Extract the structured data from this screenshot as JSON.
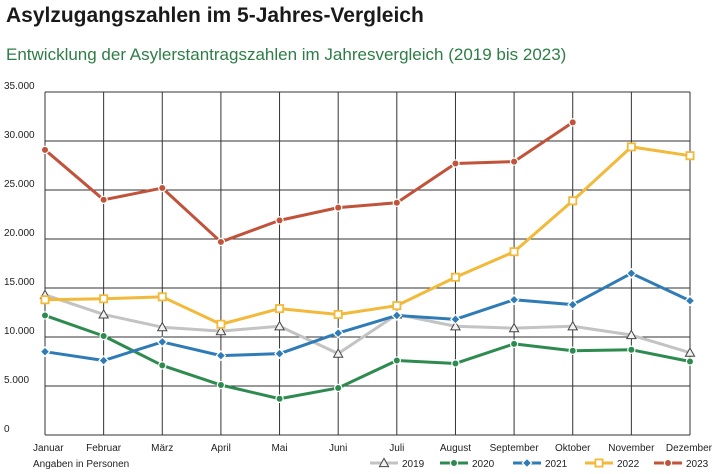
{
  "header": {
    "title": "Asylzugangszahlen im 5-Jahres-Vergleich",
    "subtitle": "Entwicklung der Asylerstantragszahlen im Jahresvergleich (2019 bis 2023)"
  },
  "chart_data": {
    "type": "line",
    "categories": [
      "Januar",
      "Februar",
      "März",
      "April",
      "Mai",
      "Juni",
      "Juli",
      "August",
      "September",
      "Oktober",
      "November",
      "Dezember"
    ],
    "ylim": [
      0,
      35000
    ],
    "yticks": [
      0,
      5000,
      10000,
      15000,
      20000,
      25000,
      30000,
      35000
    ],
    "ytick_labels": [
      "0",
      "5.000",
      "10.000",
      "15.000",
      "20.000",
      "25.000",
      "30.000",
      "35.000"
    ],
    "units_note": "Angaben in Personen",
    "grid": true,
    "legend_position": "bottom-right",
    "series": [
      {
        "name": "2019",
        "color": "#c3c3c3",
        "marker": "triangle",
        "values": [
          14300,
          12300,
          11000,
          10600,
          11100,
          8300,
          12300,
          11100,
          10900,
          11100,
          10200,
          8400
        ]
      },
      {
        "name": "2020",
        "color": "#2e8b4f",
        "marker": "circle",
        "values": [
          12200,
          10100,
          7100,
          5100,
          3700,
          4800,
          7600,
          7300,
          9300,
          8600,
          8700,
          7500
        ]
      },
      {
        "name": "2021",
        "color": "#2f7bb5",
        "marker": "diamond",
        "values": [
          8500,
          7600,
          9500,
          8100,
          8300,
          10400,
          12200,
          11800,
          13800,
          13300,
          16500,
          13700
        ]
      },
      {
        "name": "2022",
        "color": "#f2b93b",
        "marker": "square",
        "values": [
          13800,
          13900,
          14100,
          11300,
          12900,
          12300,
          13200,
          16100,
          18700,
          23900,
          29400,
          28500
        ]
      },
      {
        "name": "2023",
        "color": "#c0533a",
        "marker": "circle",
        "values": [
          29100,
          24000,
          25200,
          19700,
          21900,
          23200,
          23700,
          27700,
          27900,
          31900,
          null,
          null
        ]
      }
    ]
  }
}
